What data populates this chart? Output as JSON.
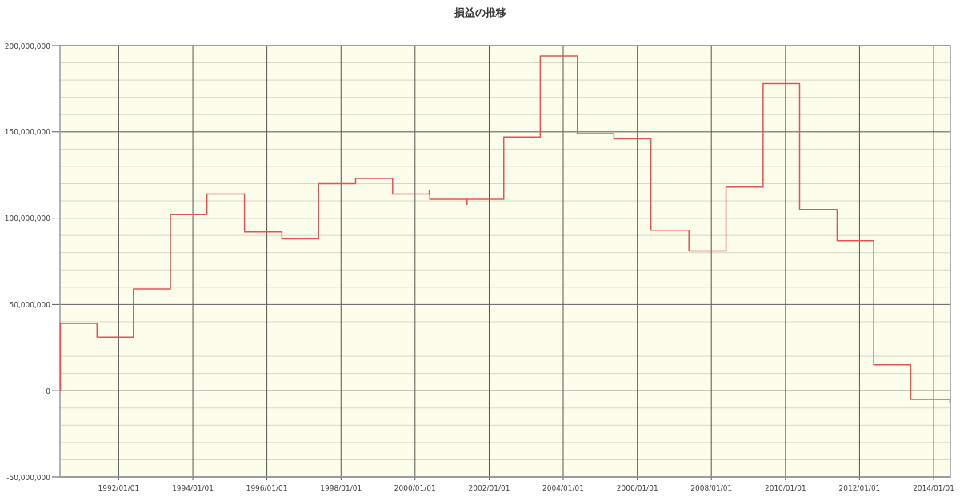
{
  "chart_data": {
    "type": "step",
    "title": "損益の推移",
    "x": [
      "1990-06-01",
      "1990-06-05",
      "1991-06-01",
      "1992-05-25",
      "1993-05-25",
      "1994-05-20",
      "1995-05-25",
      "1996-05-28",
      "1997-05-25",
      "1998-05-25",
      "1999-05-25",
      "2000-05-20",
      "2000-05-25",
      "2001-05-25",
      "2001-05-28",
      "2002-05-25",
      "2003-05-20",
      "2004-05-20",
      "2005-05-15",
      "2006-05-15",
      "2007-05-25",
      "2008-05-25",
      "2009-05-25",
      "2010-05-20",
      "2011-05-25",
      "2012-05-20",
      "2013-05-20",
      "2014-06-01",
      "2014-06-10"
    ],
    "series": [
      {
        "color": "#e05555",
        "values": [
          0,
          39000000,
          31000000,
          59000000,
          102000000,
          114000000,
          92000000,
          88000000,
          120000000,
          123000000,
          114000000,
          116000000,
          111000000,
          108000000,
          111000000,
          147000000,
          194000000,
          149000000,
          146000000,
          93000000,
          81000000,
          118000000,
          178000000,
          105000000,
          87000000,
          15000000,
          -5000000,
          -5000000,
          -7000000
        ]
      }
    ],
    "xlim": [
      "1990-06-01",
      "2014-06-15"
    ],
    "ylim": [
      -50000000,
      200000000
    ],
    "xticks": [
      {
        "value": "1992-01-01",
        "label": "1992/01/01"
      },
      {
        "value": "1994-01-01",
        "label": "1994/01/01"
      },
      {
        "value": "1996-01-01",
        "label": "1996/01/01"
      },
      {
        "value": "1998-01-01",
        "label": "1998/01/01"
      },
      {
        "value": "2000-01-01",
        "label": "2000/01/01"
      },
      {
        "value": "2002-01-01",
        "label": "2002/01/01"
      },
      {
        "value": "2004-01-01",
        "label": "2004/01/01"
      },
      {
        "value": "2006-01-01",
        "label": "2006/01/01"
      },
      {
        "value": "2008-01-01",
        "label": "2008/01/01"
      },
      {
        "value": "2010-01-01",
        "label": "2010/01/01"
      },
      {
        "value": "2012-01-01",
        "label": "2012/01/01"
      },
      {
        "value": "2014-01-01",
        "label": "2014/01/01"
      }
    ],
    "yticks": [
      {
        "value": -50000000,
        "label": "-50,000,000"
      },
      {
        "value": 0,
        "label": "0"
      },
      {
        "value": 50000000,
        "label": "50,000,000"
      },
      {
        "value": 100000000,
        "label": "100,000,000"
      },
      {
        "value": 150000000,
        "label": "150,000,000"
      },
      {
        "value": 200000000,
        "label": "200,000,000"
      }
    ],
    "grid": true
  }
}
